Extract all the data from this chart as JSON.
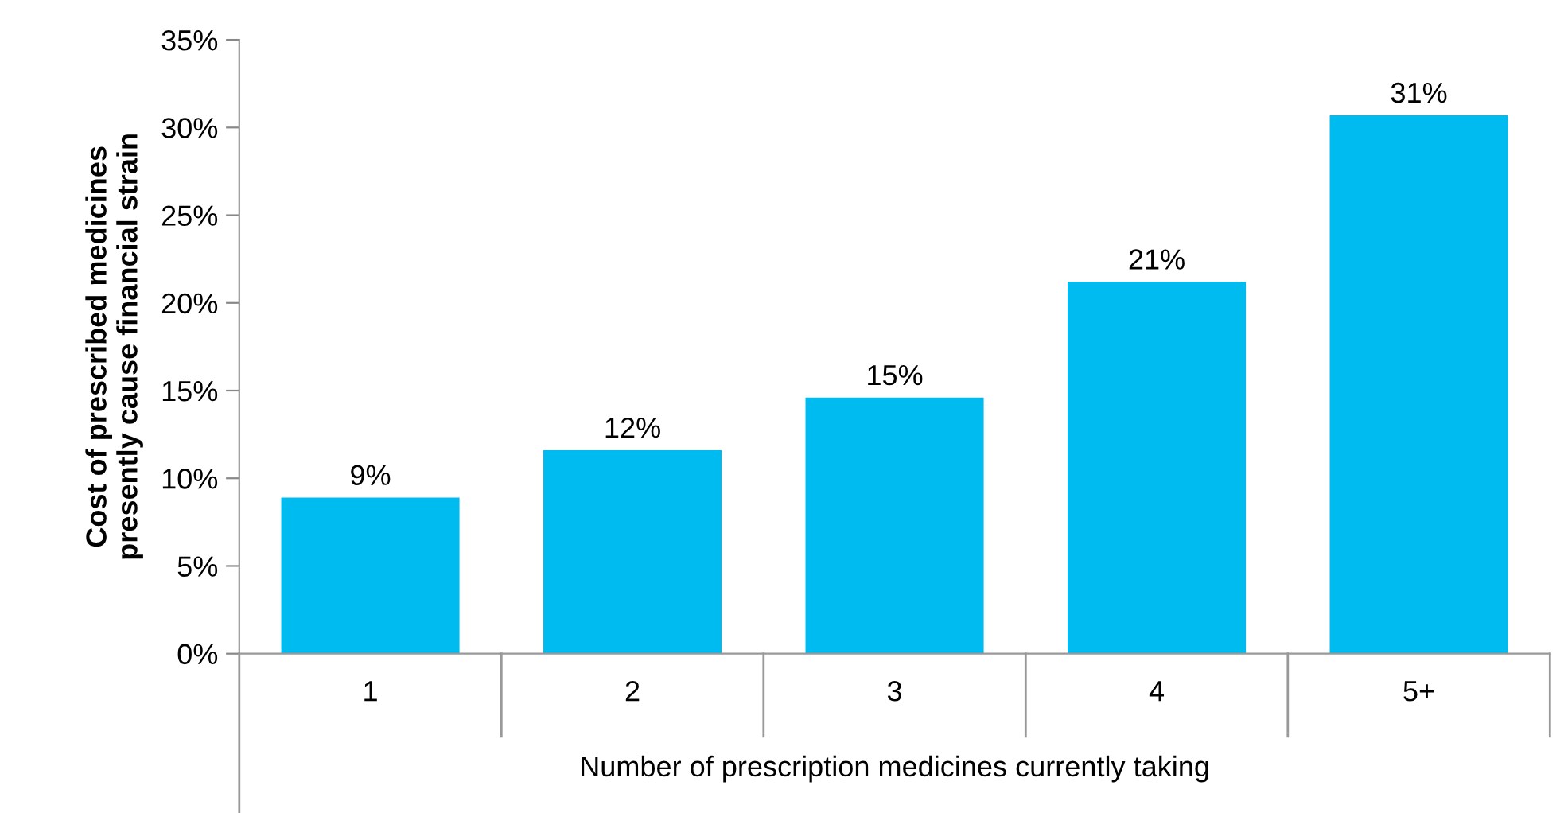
{
  "chart_data": {
    "type": "bar",
    "categories": [
      "1",
      "2",
      "3",
      "4",
      "5+"
    ],
    "values": [
      8.9,
      11.6,
      14.6,
      21.2,
      30.7
    ],
    "value_labels": [
      "9%",
      "12%",
      "15%",
      "21%",
      "31%"
    ],
    "color": "#00bbf0",
    "ylim": [
      0,
      35
    ],
    "yticks": [
      {
        "value": 0,
        "label": "0%"
      },
      {
        "value": 5,
        "label": "5%"
      },
      {
        "value": 10,
        "label": "10%"
      },
      {
        "value": 15,
        "label": "15%"
      },
      {
        "value": 20,
        "label": "20%"
      },
      {
        "value": 25,
        "label": "25%"
      },
      {
        "value": 30,
        "label": "30%"
      },
      {
        "value": 35,
        "label": "35%"
      }
    ],
    "xlabel": "Number of prescription medicines currently taking",
    "ylabel": "Cost of prescribed medicines\npresently cause financial strain",
    "grid": false,
    "legend": false
  }
}
